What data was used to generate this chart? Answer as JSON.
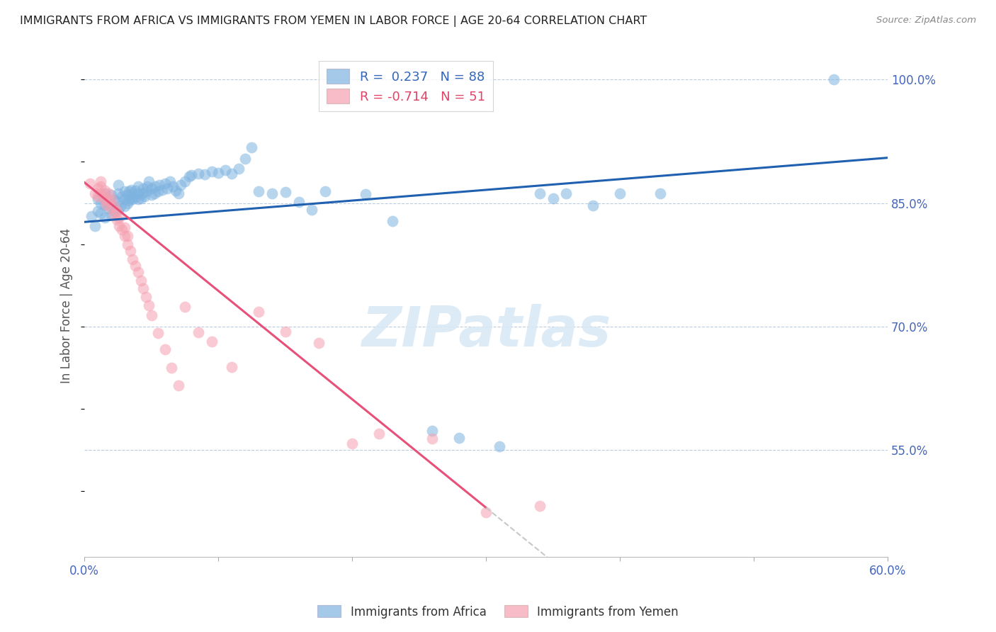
{
  "title": "IMMIGRANTS FROM AFRICA VS IMMIGRANTS FROM YEMEN IN LABOR FORCE | AGE 20-64 CORRELATION CHART",
  "source": "Source: ZipAtlas.com",
  "ylabel": "In Labor Force | Age 20-64",
  "x_tick_vals": [
    0.0,
    0.1,
    0.2,
    0.3,
    0.4,
    0.5,
    0.6
  ],
  "x_tick_labels_show": [
    "0.0%",
    "",
    "",
    "",
    "",
    "",
    "60.0%"
  ],
  "y_tick_vals": [
    1.0,
    0.85,
    0.7,
    0.55
  ],
  "y_tick_labels": [
    "100.0%",
    "85.0%",
    "70.0%",
    "55.0%"
  ],
  "xlim": [
    0.0,
    0.6
  ],
  "ylim": [
    0.42,
    1.03
  ],
  "africa_R": 0.237,
  "africa_N": 88,
  "yemen_R": -0.714,
  "yemen_N": 51,
  "africa_color": "#7EB3E0",
  "yemen_color": "#F5A0B0",
  "africa_line_color": "#2060B0",
  "yemen_line_color": "#E8507A",
  "trend_extend_color": "#C8C8C8",
  "watermark_text": "ZIPatlas",
  "africa_line_x0": 0.0,
  "africa_line_x1": 0.6,
  "africa_line_y0": 0.827,
  "africa_line_y1": 0.905,
  "yemen_line_x0": 0.0,
  "yemen_line_y0": 0.875,
  "yemen_line_x_end_solid": 0.3,
  "yemen_line_x_end_dash": 0.6,
  "africa_scatter_x": [
    0.005,
    0.008,
    0.01,
    0.01,
    0.012,
    0.012,
    0.015,
    0.015,
    0.015,
    0.018,
    0.02,
    0.02,
    0.02,
    0.022,
    0.022,
    0.025,
    0.025,
    0.025,
    0.025,
    0.027,
    0.028,
    0.03,
    0.03,
    0.03,
    0.032,
    0.032,
    0.033,
    0.033,
    0.035,
    0.035,
    0.036,
    0.036,
    0.038,
    0.038,
    0.04,
    0.04,
    0.04,
    0.042,
    0.043,
    0.044,
    0.045,
    0.046,
    0.047,
    0.048,
    0.05,
    0.05,
    0.052,
    0.053,
    0.055,
    0.056,
    0.058,
    0.06,
    0.062,
    0.064,
    0.066,
    0.068,
    0.07,
    0.072,
    0.075,
    0.078,
    0.08,
    0.085,
    0.09,
    0.095,
    0.1,
    0.105,
    0.11,
    0.115,
    0.12,
    0.125,
    0.13,
    0.14,
    0.15,
    0.16,
    0.17,
    0.18,
    0.21,
    0.23,
    0.26,
    0.28,
    0.31,
    0.34,
    0.35,
    0.36,
    0.38,
    0.4,
    0.43,
    0.56
  ],
  "africa_scatter_y": [
    0.834,
    0.822,
    0.84,
    0.855,
    0.838,
    0.85,
    0.832,
    0.848,
    0.862,
    0.844,
    0.836,
    0.848,
    0.86,
    0.84,
    0.854,
    0.842,
    0.852,
    0.862,
    0.872,
    0.846,
    0.858,
    0.846,
    0.855,
    0.864,
    0.85,
    0.86,
    0.853,
    0.864,
    0.856,
    0.866,
    0.855,
    0.862,
    0.857,
    0.865,
    0.855,
    0.862,
    0.87,
    0.856,
    0.862,
    0.868,
    0.858,
    0.864,
    0.87,
    0.876,
    0.86,
    0.868,
    0.862,
    0.87,
    0.864,
    0.872,
    0.866,
    0.874,
    0.868,
    0.876,
    0.87,
    0.865,
    0.862,
    0.872,
    0.876,
    0.882,
    0.884,
    0.886,
    0.885,
    0.888,
    0.887,
    0.89,
    0.886,
    0.892,
    0.904,
    0.918,
    0.864,
    0.862,
    0.863,
    0.851,
    0.842,
    0.864,
    0.861,
    0.828,
    0.573,
    0.565,
    0.554,
    0.862,
    0.856,
    0.862,
    0.847,
    0.862,
    0.862,
    1.0
  ],
  "yemen_scatter_x": [
    0.004,
    0.008,
    0.01,
    0.01,
    0.012,
    0.012,
    0.012,
    0.014,
    0.015,
    0.015,
    0.016,
    0.018,
    0.018,
    0.02,
    0.02,
    0.022,
    0.022,
    0.024,
    0.024,
    0.026,
    0.026,
    0.028,
    0.03,
    0.03,
    0.032,
    0.032,
    0.034,
    0.036,
    0.038,
    0.04,
    0.042,
    0.044,
    0.046,
    0.048,
    0.05,
    0.055,
    0.06,
    0.065,
    0.07,
    0.075,
    0.085,
    0.095,
    0.11,
    0.13,
    0.15,
    0.175,
    0.2,
    0.22,
    0.26,
    0.3,
    0.34
  ],
  "yemen_scatter_y": [
    0.874,
    0.862,
    0.858,
    0.868,
    0.862,
    0.87,
    0.876,
    0.858,
    0.854,
    0.865,
    0.848,
    0.852,
    0.862,
    0.844,
    0.855,
    0.836,
    0.846,
    0.83,
    0.84,
    0.822,
    0.832,
    0.818,
    0.81,
    0.82,
    0.8,
    0.81,
    0.792,
    0.782,
    0.774,
    0.766,
    0.756,
    0.746,
    0.736,
    0.726,
    0.714,
    0.692,
    0.672,
    0.65,
    0.628,
    0.724,
    0.693,
    0.682,
    0.651,
    0.718,
    0.694,
    0.68,
    0.558,
    0.57,
    0.564,
    0.474,
    0.482
  ]
}
